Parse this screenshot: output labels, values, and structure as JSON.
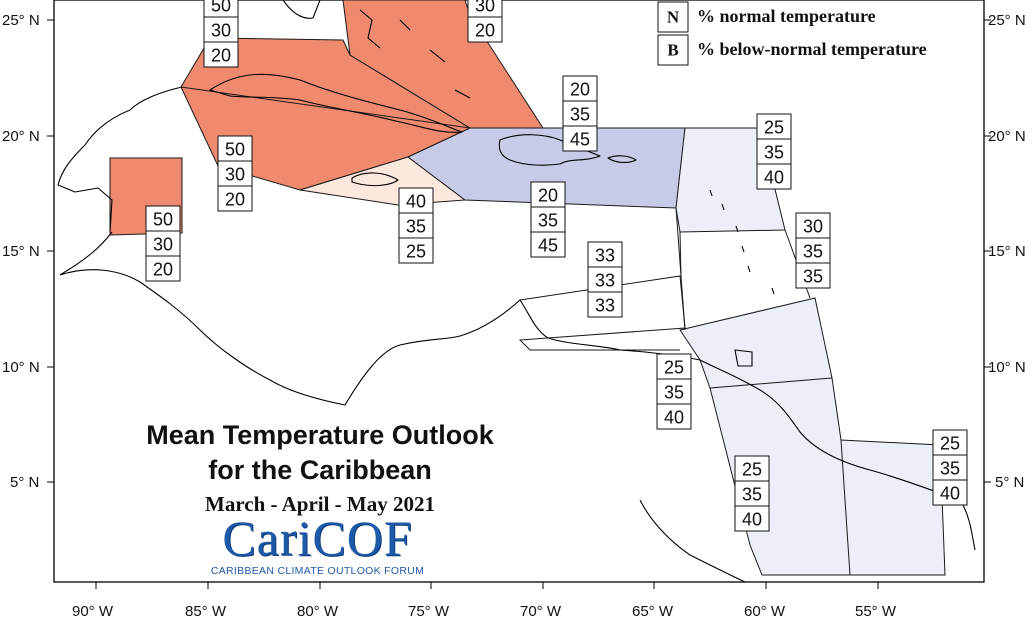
{
  "title": {
    "line1": "Mean Temperature Outlook",
    "line2": "for the Caribbean",
    "season": "March - April - May 2021"
  },
  "logo": {
    "text": "CariCOF",
    "subtitle": "CARIBBEAN CLIMATE OUTLOOK FORUM",
    "color": "#1f5aa8"
  },
  "legend": [
    {
      "key": "N",
      "label": "% normal temperature"
    },
    {
      "key": "B",
      "label": "% below-normal temperature"
    }
  ],
  "axes": {
    "lon_labels": [
      "90° W",
      "85° W",
      "80° W",
      "75° W",
      "70° W",
      "65° W",
      "60° W",
      "55° W"
    ],
    "lat_labels": [
      "25° N",
      "20° N",
      "15° N",
      "10° N",
      "5° N"
    ]
  },
  "colors": {
    "above_normal_strong": "#ef8a6f",
    "above_normal_light": "#fde8dd",
    "below_normal_strong": "#c8cbe8",
    "below_normal_light": "#eceff8",
    "equal_chances": "#ffffff"
  },
  "forecast_boxes": [
    {
      "region": "belize",
      "values": [
        "50",
        "30",
        "20"
      ]
    },
    {
      "region": "cuba-west",
      "values": [
        "50",
        "30",
        "20"
      ]
    },
    {
      "region": "cuba-north",
      "values": [
        "50",
        "30",
        "20"
      ]
    },
    {
      "region": "bahamas",
      "values": [
        "30",
        "20"
      ]
    },
    {
      "region": "jamaica",
      "values": [
        "40",
        "35",
        "25"
      ]
    },
    {
      "region": "hispaniola-north",
      "values": [
        "20",
        "35",
        "45"
      ]
    },
    {
      "region": "hispaniola-south",
      "values": [
        "20",
        "35",
        "45"
      ]
    },
    {
      "region": "leeward-islands",
      "values": [
        "25",
        "35",
        "40"
      ]
    },
    {
      "region": "windward-islands",
      "values": [
        "30",
        "35",
        "35"
      ]
    },
    {
      "region": "caribbean-sea",
      "values": [
        "33",
        "33",
        "33"
      ]
    },
    {
      "region": "trinidad",
      "values": [
        "25",
        "35",
        "40"
      ]
    },
    {
      "region": "guyana",
      "values": [
        "25",
        "35",
        "40"
      ]
    },
    {
      "region": "french-guiana",
      "values": [
        "25",
        "35",
        "40"
      ]
    }
  ]
}
